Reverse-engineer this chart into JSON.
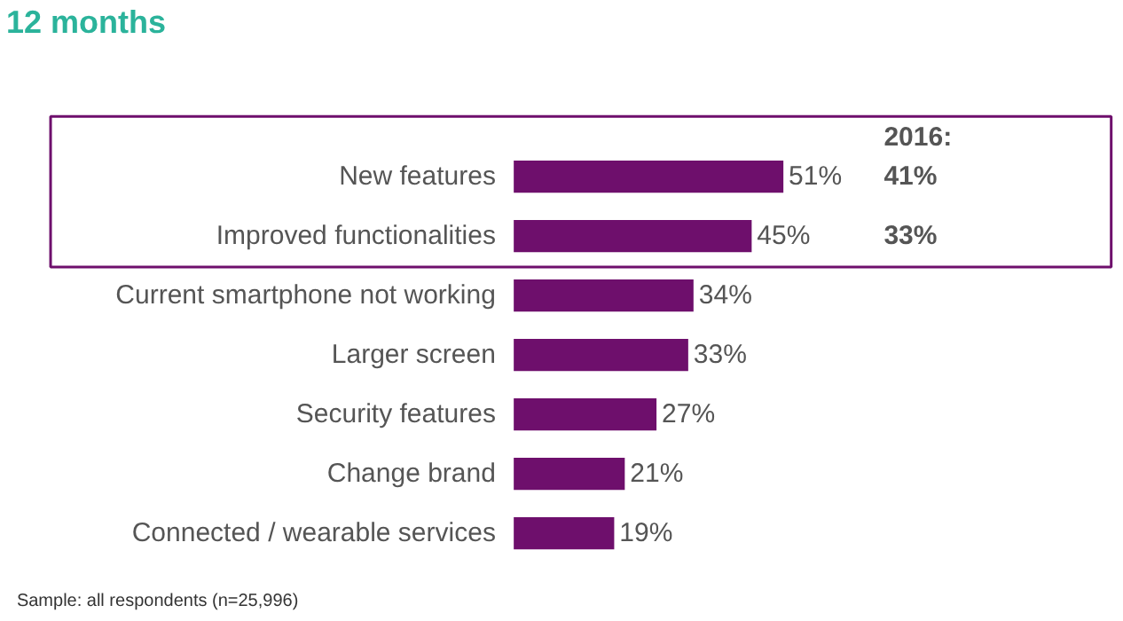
{
  "chart_data": {
    "type": "bar",
    "orientation": "horizontal",
    "title": "12 months",
    "categories": [
      "New features",
      "Improved functionalities",
      "Current smartphone not working",
      "Larger screen",
      "Security features",
      "Change brand",
      "Connected / wearable services"
    ],
    "values": [
      51,
      45,
      34,
      33,
      27,
      21,
      19
    ],
    "color": "#6e0f6c",
    "value_labels": [
      "51%",
      "45%",
      "34%",
      "33%",
      "27%",
      "21%",
      "19%"
    ],
    "annotations": [
      "2016:",
      "41%",
      "33%",
      "Sample: all respondents (n=25,996)"
    ]
  }
}
